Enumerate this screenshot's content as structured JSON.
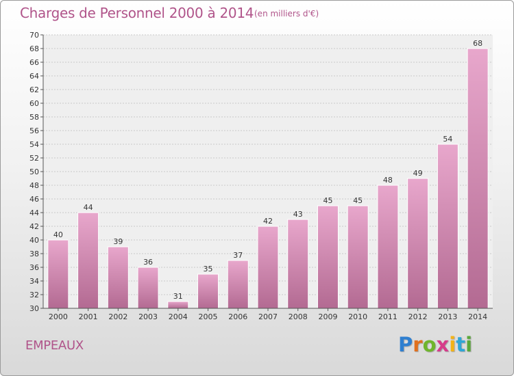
{
  "header": {
    "title": "Charges de Personnel 2000 à 2014",
    "subtitle": "(en milliers d'€)"
  },
  "footer": {
    "commune": "EMPEAUX",
    "logo_text": "Proxiti"
  },
  "colors": {
    "title": "#b0548a",
    "bar_top": "#e8a7cc",
    "bar_bottom": "#b36a92",
    "logo": [
      "#2f7fd0",
      "#e0701e",
      "#6fb52c",
      "#d63b8a",
      "#f2b318",
      "#2fa6d6",
      "#5aa83a"
    ]
  },
  "chart_data": {
    "type": "bar",
    "categories": [
      "2000",
      "2001",
      "2002",
      "2003",
      "2004",
      "2005",
      "2006",
      "2007",
      "2008",
      "2009",
      "2010",
      "2011",
      "2012",
      "2013",
      "2014"
    ],
    "values": [
      40,
      44,
      39,
      36,
      31,
      35,
      37,
      42,
      43,
      45,
      45,
      48,
      49,
      54,
      68
    ],
    "ylim": [
      30,
      70
    ],
    "ytick_step": 2,
    "yticks": [
      "30",
      "32",
      "34",
      "36",
      "38",
      "40",
      "42",
      "44",
      "46",
      "48",
      "50",
      "52",
      "54",
      "56",
      "58",
      "60",
      "62",
      "64",
      "66",
      "68",
      "70"
    ],
    "grid": true,
    "data_labels": true
  }
}
